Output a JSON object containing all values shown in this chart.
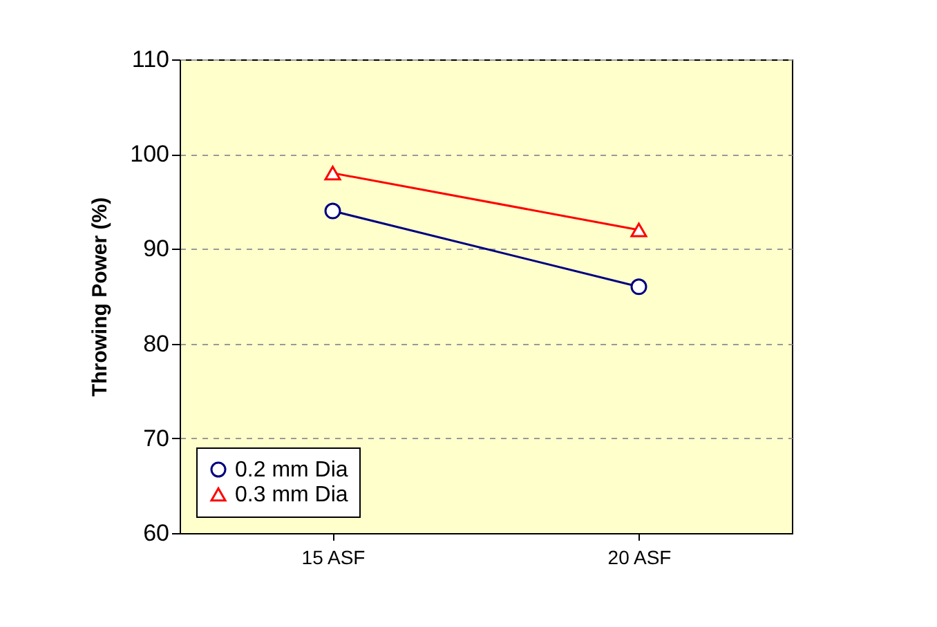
{
  "chart_data": {
    "type": "line",
    "ylabel": "Throwing Power (%)",
    "categories": [
      "15 ASF",
      "20 ASF"
    ],
    "series": [
      {
        "name": "0.2 mm Dia",
        "color": "#000080",
        "values": [
          94,
          86
        ],
        "marker": "circle"
      },
      {
        "name": "0.3 mm Dia",
        "color": "#ff0000",
        "values": [
          98,
          92
        ],
        "marker": "triangle"
      }
    ],
    "ylim": [
      60,
      110
    ],
    "yticks": [
      60,
      70,
      80,
      90,
      100,
      110
    ],
    "grid": "y",
    "legend": "bottom left",
    "line_style": "solid"
  }
}
